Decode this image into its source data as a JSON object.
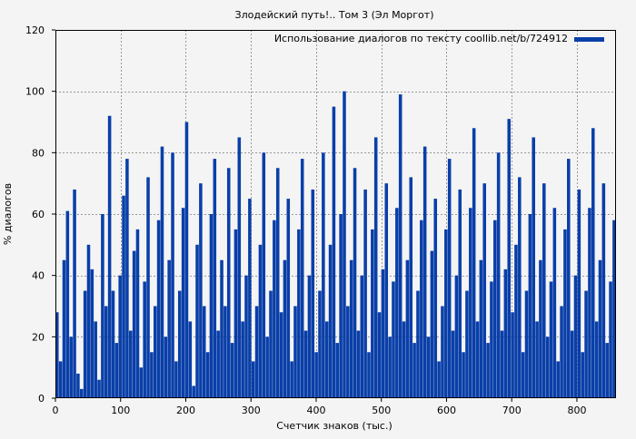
{
  "chart_data": {
    "type": "bar",
    "title": "Злодейский путь!.. Том 3 (Эл Моргот)",
    "xlabel": "Счетчик знаков (тыс.)",
    "ylabel": "% диалогов",
    "xlim": [
      0,
      860
    ],
    "ylim": [
      0,
      120
    ],
    "xticks": [
      0,
      100,
      200,
      300,
      400,
      500,
      600,
      700,
      800
    ],
    "yticks": [
      0,
      20,
      40,
      60,
      80,
      100,
      120
    ],
    "grid": true,
    "legend_position": "top-right",
    "series": [
      {
        "name": "Использование диалогов по тексту coollib.net/b/724912",
        "color": "#0a3fa8",
        "x_step": 1,
        "values": [
          28,
          12,
          45,
          61,
          20,
          68,
          8,
          3,
          35,
          50,
          42,
          25,
          6,
          60,
          30,
          92,
          35,
          18,
          40,
          66,
          78,
          22,
          48,
          55,
          10,
          38,
          72,
          15,
          30,
          58,
          82,
          20,
          45,
          80,
          12,
          35,
          62,
          90,
          25,
          4,
          50,
          70,
          30,
          15,
          60,
          78,
          22,
          45,
          30,
          75,
          18,
          55,
          85,
          25,
          40,
          65,
          12,
          30,
          50,
          80,
          20,
          35,
          58,
          75,
          28,
          45,
          65,
          12,
          30,
          55,
          78,
          22,
          40,
          68,
          15,
          35,
          80,
          25,
          50,
          95,
          18,
          60,
          100,
          30,
          45,
          75,
          22,
          40,
          68,
          15,
          55,
          85,
          28,
          42,
          70,
          20,
          38,
          62,
          99,
          25,
          45,
          72,
          18,
          35,
          58,
          82,
          20,
          48,
          65,
          12,
          30,
          55,
          78,
          22,
          40,
          68,
          15,
          35,
          62,
          88,
          25,
          45,
          70,
          18,
          38,
          58,
          80,
          22,
          42,
          91,
          28,
          50,
          72,
          15,
          35,
          60,
          85,
          25,
          45,
          70,
          20,
          38,
          62,
          12,
          30,
          55,
          78,
          22,
          40,
          68,
          15,
          35,
          62,
          88,
          25,
          45,
          70,
          18,
          38,
          58
        ]
      }
    ]
  }
}
